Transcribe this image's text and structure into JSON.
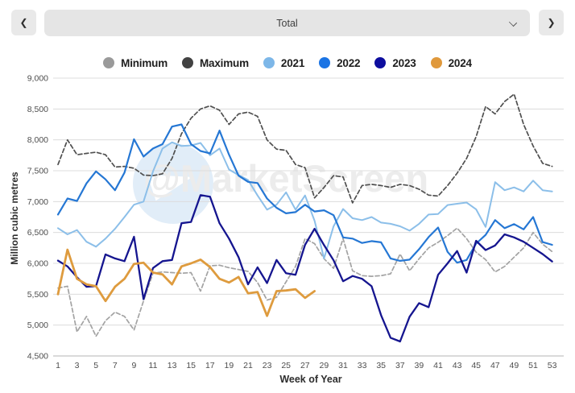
{
  "toolbar": {
    "prev_icon": "❮",
    "next_icon": "❯",
    "selector_value": "Total"
  },
  "watermark": {
    "text": "@MarketScreen"
  },
  "chart_data": {
    "type": "line",
    "title": "",
    "xlabel": "Week of Year",
    "ylabel": "Million cubic metres",
    "ylim": [
      4500,
      9000
    ],
    "y_tick_step": 500,
    "y_ticks": [
      4500,
      5000,
      5500,
      6000,
      6500,
      7000,
      7500,
      8000,
      8500,
      9000
    ],
    "x_ticks": [
      1,
      3,
      5,
      7,
      9,
      11,
      13,
      15,
      17,
      19,
      21,
      23,
      25,
      27,
      29,
      31,
      33,
      35,
      37,
      39,
      41,
      43,
      45,
      47,
      49,
      51,
      53
    ],
    "x_range": [
      1,
      53
    ],
    "grid": "horizontal",
    "legend_position": "top",
    "series": [
      {
        "name": "Minimum",
        "color": "#a3a3a3",
        "legend_color": "#9a9a9a",
        "dash": "5,3",
        "width": 1.7,
        "values": [
          5600,
          5630,
          4890,
          5140,
          4820,
          5070,
          5210,
          5140,
          4920,
          5390,
          5840,
          5860,
          5850,
          5840,
          5850,
          5550,
          5960,
          5970,
          5930,
          5900,
          5870,
          5690,
          5405,
          5450,
          5700,
          5950,
          6400,
          6320,
          6075,
          5920,
          6400,
          5880,
          5800,
          5790,
          5800,
          5830,
          6150,
          5880,
          6075,
          6250,
          6340,
          6450,
          6570,
          6400,
          6180,
          6060,
          5860,
          5950,
          6100,
          6250,
          6500,
          6310,
          6190
        ]
      },
      {
        "name": "Maximum",
        "color": "#4f4f4f",
        "legend_color": "#424242",
        "dash": "5,3",
        "width": 1.7,
        "values": [
          7600,
          8000,
          7760,
          7780,
          7800,
          7760,
          7560,
          7570,
          7540,
          7430,
          7420,
          7450,
          7700,
          8100,
          8350,
          8500,
          8550,
          8480,
          8250,
          8420,
          8450,
          8380,
          8000,
          7850,
          7830,
          7600,
          7550,
          7060,
          7230,
          7420,
          7400,
          6980,
          7260,
          7280,
          7260,
          7230,
          7280,
          7260,
          7200,
          7105,
          7090,
          7260,
          7460,
          7700,
          8050,
          8540,
          8420,
          8620,
          8740,
          8250,
          7900,
          7620,
          7570
        ]
      },
      {
        "name": "2021",
        "color": "#8cbfe9",
        "legend_color": "#7db7e8",
        "dash": "",
        "width": 2,
        "values": [
          6570,
          6470,
          6540,
          6350,
          6270,
          6400,
          6560,
          6750,
          6950,
          7000,
          7490,
          7860,
          7960,
          7900,
          7910,
          7950,
          7750,
          7860,
          7520,
          7430,
          7350,
          7100,
          6870,
          6950,
          7150,
          6870,
          7100,
          6690,
          6080,
          6600,
          6880,
          6730,
          6700,
          6750,
          6660,
          6640,
          6600,
          6530,
          6640,
          6790,
          6800,
          6945,
          6965,
          6985,
          6875,
          6590,
          7315,
          7185,
          7230,
          7165,
          7340,
          7185,
          7165
        ]
      },
      {
        "name": "2022",
        "color": "#2577d4",
        "legend_color": "#1b74e4",
        "dash": "",
        "width": 2.2,
        "values": [
          6790,
          7050,
          7010,
          7295,
          7490,
          7360,
          7185,
          7470,
          8010,
          7730,
          7860,
          7930,
          8215,
          8250,
          7930,
          7820,
          7780,
          8150,
          7760,
          7420,
          7320,
          7300,
          7050,
          6900,
          6810,
          6830,
          6950,
          6840,
          6860,
          6780,
          6420,
          6400,
          6330,
          6360,
          6340,
          6080,
          6040,
          6060,
          6230,
          6425,
          6580,
          6185,
          6010,
          6055,
          6320,
          6460,
          6700,
          6570,
          6635,
          6550,
          6750,
          6345,
          6300
        ]
      },
      {
        "name": "2023",
        "color": "#15158f",
        "legend_color": "#0d0d9e",
        "dash": "",
        "width": 2.3,
        "values": [
          6045,
          5950,
          5775,
          5620,
          5630,
          6145,
          6080,
          6035,
          6430,
          5420,
          5925,
          6035,
          6055,
          6650,
          6670,
          7105,
          7080,
          6650,
          6400,
          6100,
          5660,
          5935,
          5680,
          6055,
          5840,
          5815,
          6300,
          6560,
          6295,
          6050,
          5710,
          5795,
          5750,
          5630,
          5160,
          4795,
          4735,
          5135,
          5355,
          5290,
          5815,
          6000,
          6200,
          5850,
          6365,
          6215,
          6290,
          6470,
          6420,
          6350,
          6250,
          6150,
          6030
        ]
      },
      {
        "name": "2024",
        "color": "#de9b3e",
        "legend_color": "#e0993c",
        "dash": "",
        "width": 2.8,
        "values": [
          5500,
          6220,
          5750,
          5660,
          5630,
          5390,
          5620,
          5750,
          5990,
          6010,
          5850,
          5820,
          5660,
          5950,
          6000,
          6060,
          5940,
          5750,
          5690,
          5780,
          5515,
          5535,
          5150,
          5550,
          5560,
          5580,
          5440,
          5550
        ]
      }
    ]
  }
}
